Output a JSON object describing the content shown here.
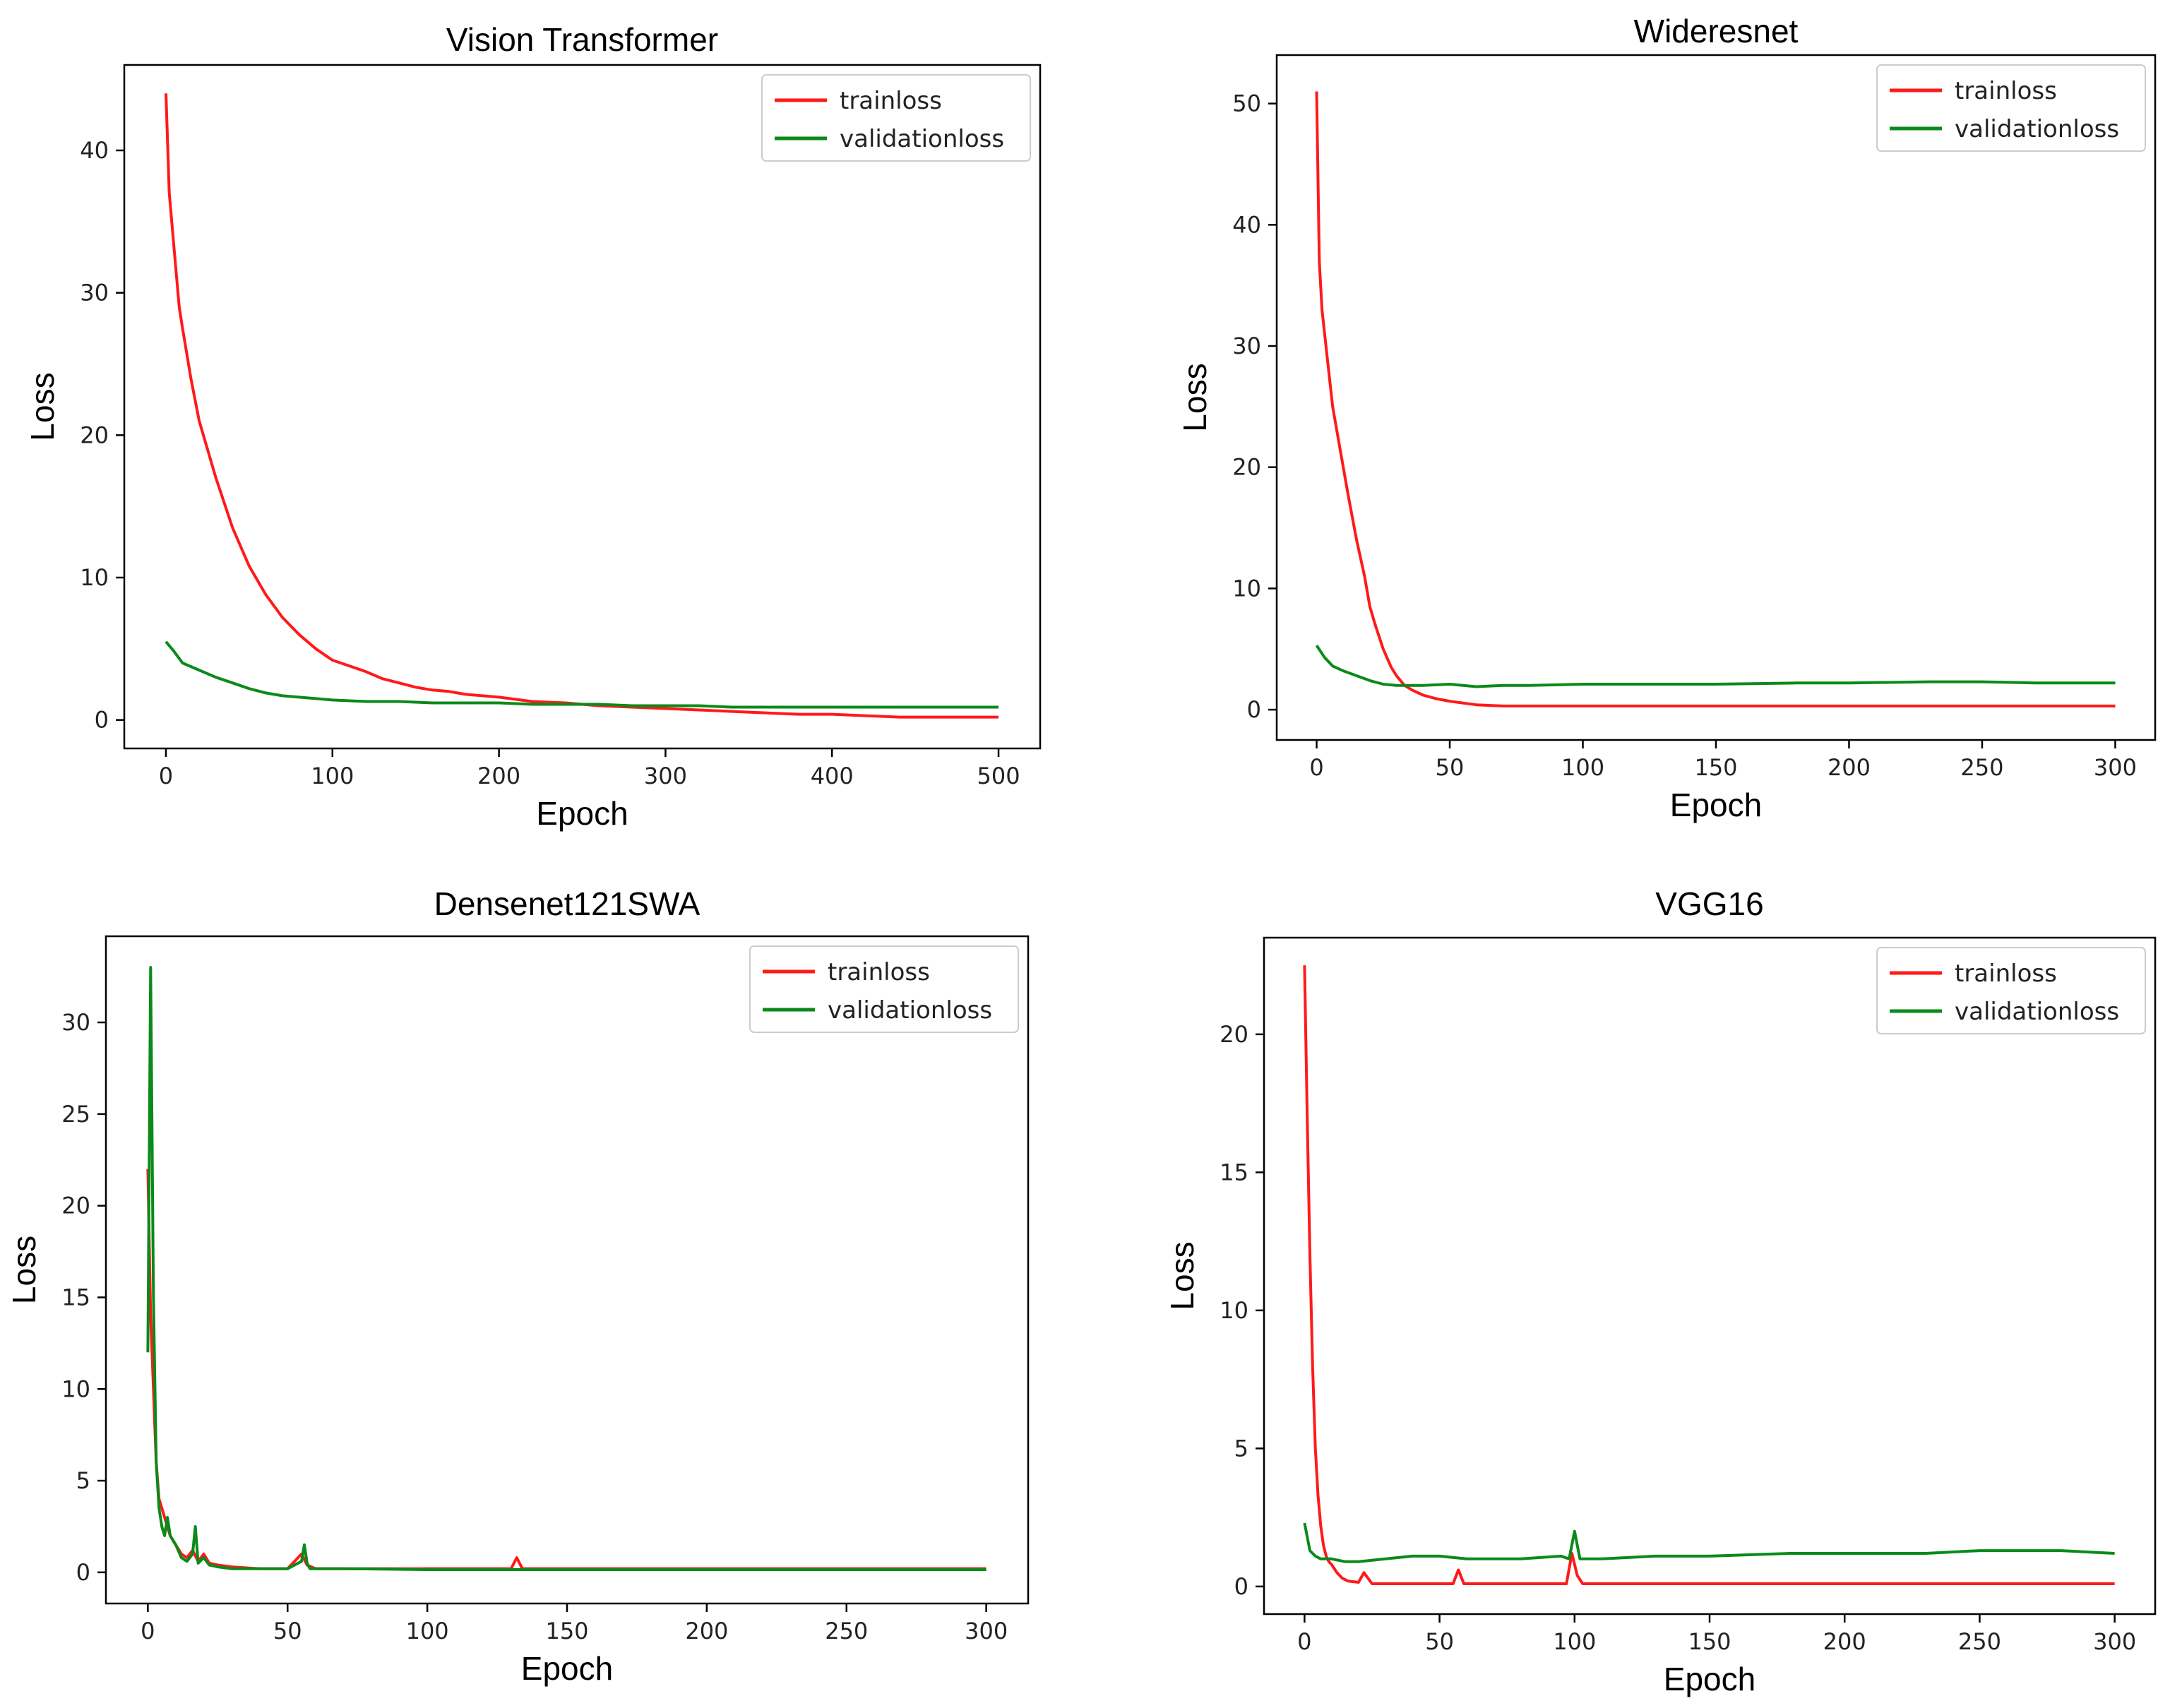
{
  "figure": {
    "colors": {
      "trainloss": "#ff1a1a",
      "validationloss": "#0a8a1a"
    }
  },
  "chart_data": [
    {
      "type": "line",
      "title": "Vision Transformer",
      "xlabel": "Epoch",
      "ylabel": "Loss",
      "xlim": [
        -25,
        525
      ],
      "ylim": [
        -2,
        46
      ],
      "xticks": [
        0,
        100,
        200,
        300,
        400,
        500
      ],
      "yticks": [
        0,
        10,
        20,
        30,
        40
      ],
      "legend": "top-right",
      "grid": false,
      "series": [
        {
          "name": "trainloss",
          "color": "#ff1a1a",
          "x": [
            0,
            2,
            5,
            8,
            10,
            15,
            20,
            30,
            40,
            50,
            60,
            70,
            80,
            90,
            100,
            110,
            120,
            130,
            140,
            150,
            160,
            170,
            180,
            190,
            200,
            220,
            240,
            260,
            280,
            300,
            320,
            340,
            360,
            380,
            400,
            420,
            440,
            460,
            480,
            500
          ],
          "y": [
            44,
            37,
            33,
            29,
            27.5,
            24,
            21,
            17,
            13.5,
            10.8,
            8.8,
            7.2,
            6,
            5,
            4.2,
            3.8,
            3.4,
            2.9,
            2.6,
            2.3,
            2.1,
            2,
            1.8,
            1.7,
            1.6,
            1.3,
            1.2,
            1,
            0.9,
            0.8,
            0.7,
            0.6,
            0.5,
            0.4,
            0.4,
            0.3,
            0.2,
            0.2,
            0.2,
            0.2
          ]
        },
        {
          "name": "validationloss",
          "color": "#0a8a1a",
          "x": [
            0,
            5,
            10,
            20,
            30,
            40,
            50,
            60,
            70,
            80,
            90,
            100,
            120,
            140,
            160,
            180,
            200,
            220,
            240,
            260,
            280,
            300,
            320,
            340,
            360,
            380,
            400,
            420,
            440,
            460,
            480,
            500
          ],
          "y": [
            5.5,
            4.8,
            4,
            3.5,
            3,
            2.6,
            2.2,
            1.9,
            1.7,
            1.6,
            1.5,
            1.4,
            1.3,
            1.3,
            1.2,
            1.2,
            1.2,
            1.1,
            1.1,
            1.1,
            1,
            1,
            1,
            0.9,
            0.9,
            0.9,
            0.9,
            0.9,
            0.9,
            0.9,
            0.9,
            0.9
          ]
        }
      ]
    },
    {
      "type": "line",
      "title": "Wideresnet",
      "xlabel": "Epoch",
      "ylabel": "Loss",
      "xlim": [
        -15,
        315
      ],
      "ylim": [
        -2.5,
        54
      ],
      "xticks": [
        0,
        50,
        100,
        150,
        200,
        250,
        300
      ],
      "yticks": [
        0,
        10,
        20,
        30,
        40,
        50
      ],
      "legend": "top-right",
      "grid": false,
      "series": [
        {
          "name": "trainloss",
          "color": "#ff1a1a",
          "x": [
            0,
            1,
            2,
            4,
            6,
            8,
            10,
            12,
            15,
            18,
            20,
            22,
            25,
            28,
            30,
            33,
            36,
            40,
            45,
            50,
            60,
            70,
            80,
            100,
            120,
            150,
            200,
            250,
            300
          ],
          "y": [
            51,
            37,
            33,
            29,
            25,
            22.5,
            20,
            17.5,
            14,
            11,
            8.5,
            7,
            5,
            3.5,
            2.8,
            2,
            1.6,
            1.2,
            0.9,
            0.7,
            0.4,
            0.3,
            0.3,
            0.3,
            0.3,
            0.3,
            0.3,
            0.3,
            0.3
          ]
        },
        {
          "name": "validationloss",
          "color": "#0a8a1a",
          "x": [
            0,
            3,
            6,
            10,
            15,
            20,
            25,
            30,
            40,
            50,
            60,
            70,
            80,
            100,
            120,
            150,
            180,
            200,
            230,
            250,
            270,
            300
          ],
          "y": [
            5.3,
            4.3,
            3.6,
            3.2,
            2.8,
            2.4,
            2.1,
            2,
            2,
            2.1,
            1.9,
            2,
            2,
            2.1,
            2.1,
            2.1,
            2.2,
            2.2,
            2.3,
            2.3,
            2.2,
            2.2
          ]
        }
      ]
    },
    {
      "type": "line",
      "title": "Densenet121SWA",
      "xlabel": "Epoch",
      "ylabel": "Loss",
      "xlim": [
        -15,
        315
      ],
      "ylim": [
        -1.7,
        34.7
      ],
      "xticks": [
        0,
        50,
        100,
        150,
        200,
        250,
        300
      ],
      "yticks": [
        0,
        5,
        10,
        15,
        20,
        25,
        30
      ],
      "legend": "top-right",
      "grid": false,
      "series": [
        {
          "name": "trainloss",
          "color": "#ff1a1a",
          "x": [
            0,
            1,
            2,
            3,
            4,
            5,
            6,
            7,
            8,
            10,
            12,
            14,
            16,
            18,
            20,
            22,
            25,
            30,
            40,
            50,
            55,
            57,
            60,
            70,
            100,
            130,
            132,
            134,
            150,
            200,
            250,
            300
          ],
          "y": [
            22,
            14,
            10,
            6,
            4,
            3.5,
            3,
            2.5,
            2,
            1.5,
            1,
            0.8,
            1.2,
            0.6,
            1,
            0.5,
            0.4,
            0.3,
            0.2,
            0.2,
            1,
            0.4,
            0.2,
            0.2,
            0.2,
            0.2,
            0.8,
            0.2,
            0.2,
            0.2,
            0.2,
            0.2
          ]
        },
        {
          "name": "validationloss",
          "color": "#0a8a1a",
          "x": [
            0,
            1,
            2,
            3,
            4,
            5,
            6,
            7,
            8,
            10,
            12,
            14,
            16,
            17,
            18,
            20,
            22,
            25,
            30,
            40,
            50,
            55,
            56,
            57,
            58,
            60,
            70,
            100,
            150,
            200,
            250,
            300
          ],
          "y": [
            12,
            33,
            15,
            6,
            3.5,
            2.5,
            2,
            3,
            2,
            1.5,
            0.8,
            0.6,
            1,
            2.5,
            0.5,
            0.8,
            0.4,
            0.3,
            0.2,
            0.2,
            0.2,
            0.6,
            1.5,
            0.5,
            0.2,
            0.2,
            0.2,
            0.15,
            0.15,
            0.15,
            0.15,
            0.15
          ]
        }
      ]
    },
    {
      "type": "line",
      "title": "VGG16",
      "xlabel": "Epoch",
      "ylabel": "Loss",
      "xlim": [
        -15,
        315
      ],
      "ylim": [
        -1.0,
        23.5
      ],
      "xticks": [
        0,
        50,
        100,
        150,
        200,
        250,
        300
      ],
      "yticks": [
        0,
        5,
        10,
        15,
        20
      ],
      "legend": "top-right",
      "grid": false,
      "series": [
        {
          "name": "trainloss",
          "color": "#ff1a1a",
          "x": [
            0,
            1,
            2,
            3,
            4,
            5,
            6,
            7,
            8,
            9,
            10,
            12,
            14,
            16,
            20,
            22,
            25,
            30,
            40,
            50,
            55,
            57,
            59,
            70,
            90,
            97,
            99,
            101,
            103,
            110,
            150,
            200,
            250,
            300
          ],
          "y": [
            22.5,
            17,
            12,
            8,
            5,
            3.3,
            2.2,
            1.5,
            1.1,
            0.9,
            0.8,
            0.5,
            0.3,
            0.2,
            0.15,
            0.5,
            0.1,
            0.1,
            0.1,
            0.1,
            0.1,
            0.6,
            0.1,
            0.1,
            0.1,
            0.1,
            1.2,
            0.4,
            0.1,
            0.1,
            0.1,
            0.1,
            0.1,
            0.1
          ]
        },
        {
          "name": "validationloss",
          "color": "#0a8a1a",
          "x": [
            0,
            2,
            4,
            6,
            10,
            15,
            20,
            30,
            40,
            50,
            60,
            80,
            95,
            98,
            100,
            102,
            110,
            130,
            150,
            180,
            200,
            230,
            250,
            280,
            300
          ],
          "y": [
            2.3,
            1.3,
            1.1,
            1,
            1,
            0.9,
            0.9,
            1,
            1.1,
            1.1,
            1,
            1,
            1.1,
            1,
            2,
            1,
            1,
            1.1,
            1.1,
            1.2,
            1.2,
            1.2,
            1.3,
            1.3,
            1.2
          ]
        }
      ]
    }
  ]
}
